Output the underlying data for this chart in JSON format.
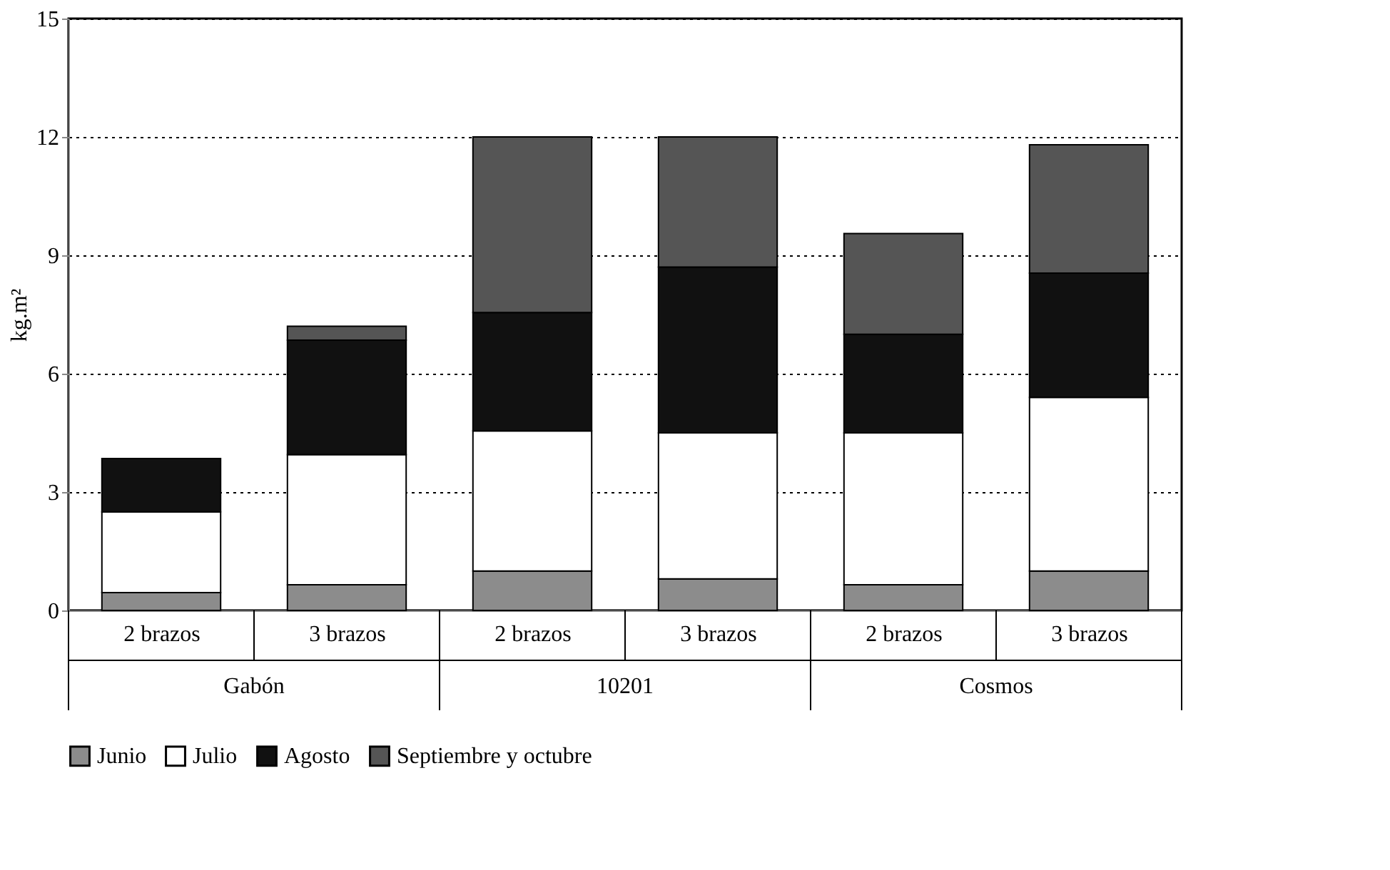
{
  "chart_data": {
    "type": "bar",
    "stacked": true,
    "ylabel": "kg.m²",
    "categories": [
      "2  brazos",
      "3 brazos",
      "2  brazos",
      "3 brazos",
      "2  brazos",
      "3 brazos"
    ],
    "annotations": [
      "Gabón",
      "10201",
      "Cosmos"
    ],
    "series": [
      {
        "name": "Junio",
        "color": "#8c8c8c",
        "values": [
          0.45,
          0.65,
          1.0,
          0.8,
          0.65,
          1.0
        ]
      },
      {
        "name": "Julio",
        "color": "#ffffff",
        "values": [
          2.05,
          3.3,
          3.55,
          3.7,
          3.85,
          4.4
        ]
      },
      {
        "name": "Agosto",
        "color": "#111111",
        "values": [
          1.35,
          2.9,
          3.0,
          4.2,
          2.5,
          3.15
        ]
      },
      {
        "name": "Septiembre y octubre",
        "color": "#555555",
        "values": [
          null,
          0.35,
          4.45,
          3.3,
          2.55,
          3.25
        ]
      }
    ],
    "ylim": [
      0,
      15
    ],
    "yticks": [
      0,
      3,
      6,
      9,
      12,
      15
    ],
    "grid": "y",
    "line_style": "dotted",
    "legend": "bottom"
  }
}
